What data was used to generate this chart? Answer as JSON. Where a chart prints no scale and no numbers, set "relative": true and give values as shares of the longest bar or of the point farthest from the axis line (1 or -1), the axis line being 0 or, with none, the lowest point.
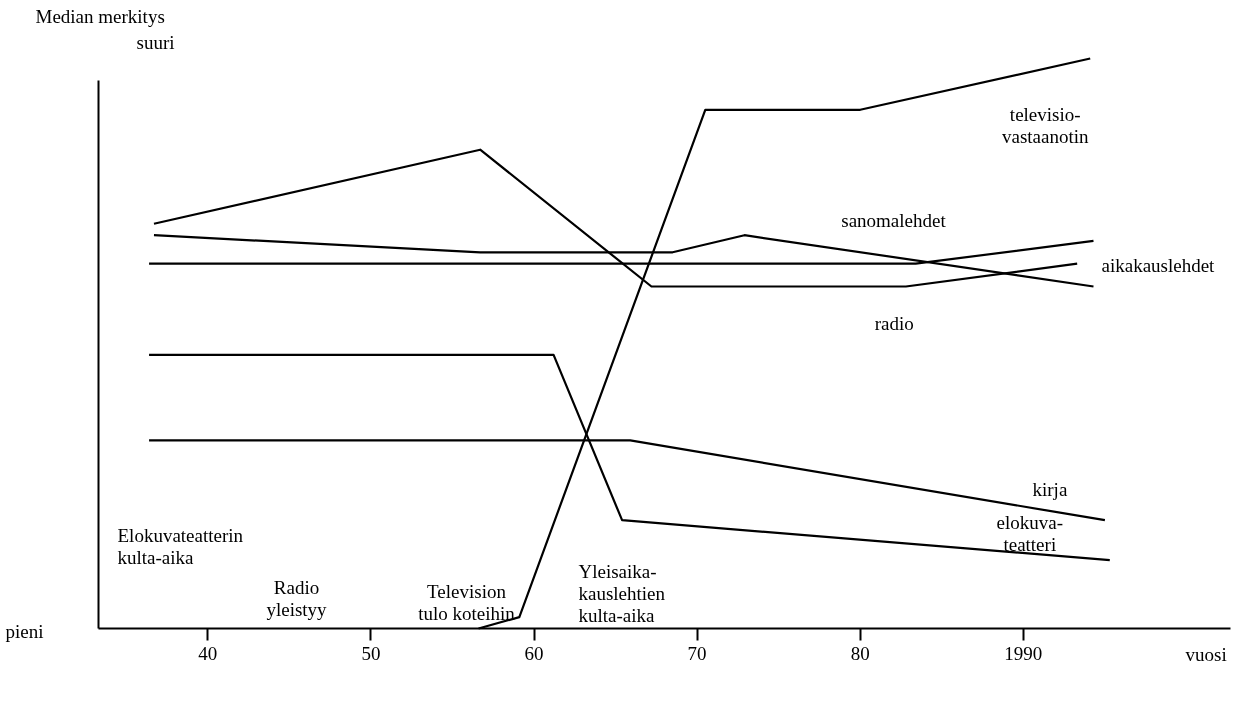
{
  "chart_data": {
    "type": "line",
    "relative": true,
    "ylabel": "Median merkitys",
    "xlabel": "vuosi",
    "xlim": [
      1933.3,
      2002.7
    ],
    "xticks": [
      {
        "value": 1940,
        "label": "40"
      },
      {
        "value": 1950,
        "label": "50"
      },
      {
        "value": 1960,
        "label": "60"
      },
      {
        "value": 1970,
        "label": "70"
      },
      {
        "value": 1980,
        "label": "80"
      },
      1990
    ],
    "marker": "none",
    "line_style": "solid",
    "grid": false,
    "legend": false,
    "annotations": [
      "suuri",
      "pieni",
      "Elokuvateatterin\nkulta-aika",
      "Radio\nyleistyy",
      "Television\ntulo koteihin",
      "Yleisaika-\nkauslehtien\nkulta-aika"
    ],
    "series": [
      {
        "name": "televisio-\nvastaanotin",
        "color": "#000000",
        "x": [
          1956.6,
          1959.1,
          1970.5,
          1980.0,
          1994.1
        ],
        "values": [
          0,
          0.02,
          0.91,
          0.91,
          1.0
        ]
      },
      {
        "name": "radio",
        "color": "#000000",
        "x": [
          1936.7,
          1956.7,
          1967.2,
          1982.8,
          1993.3
        ],
        "values": [
          0.71,
          0.84,
          0.6,
          0.6,
          0.64
        ]
      },
      {
        "name": "sanomalehdet",
        "color": "#000000",
        "x": [
          1936.7,
          1956.7,
          1968.5,
          1972.9,
          1994.3
        ],
        "values": [
          0.69,
          0.66,
          0.66,
          0.69,
          0.6
        ]
      },
      {
        "name": "aikakauslehdet",
        "color": "#000000",
        "x": [
          1936.4,
          1983.4,
          1994.3
        ],
        "values": [
          0.64,
          0.64,
          0.68
        ]
      },
      {
        "name": "kirja",
        "color": "#000000",
        "x": [
          1936.4,
          1965.9,
          1995.0
        ],
        "values": [
          0.33,
          0.33,
          0.19
        ]
      },
      {
        "name": "elokuva-\nteatteri",
        "color": "#000000",
        "x": [
          1936.4,
          1961.2,
          1965.4,
          1995.3
        ],
        "values": [
          0.48,
          0.48,
          0.19,
          0.12
        ]
      }
    ]
  }
}
